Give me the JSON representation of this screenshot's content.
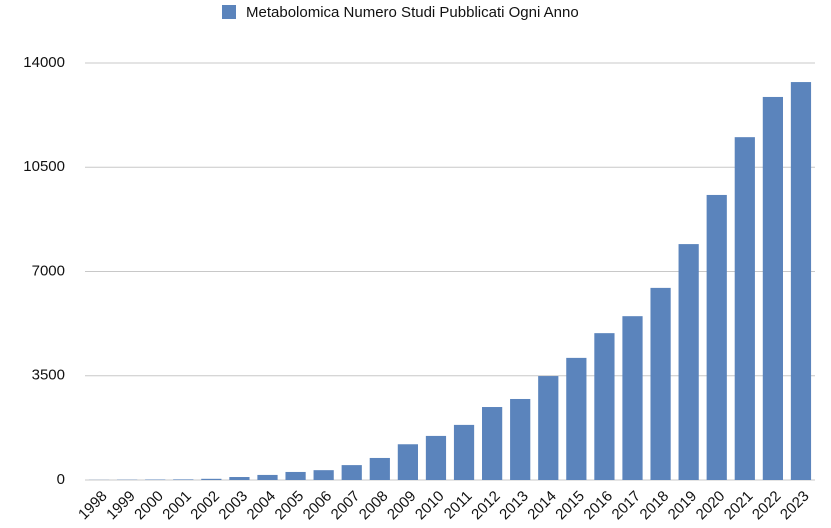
{
  "chart_data": {
    "type": "bar",
    "series": [
      {
        "name": "Metabolomica Numero Studi Pubblicati Ogni Anno",
        "color": "#5b84bc",
        "values": [
          5,
          10,
          15,
          20,
          40,
          100,
          170,
          270,
          330,
          500,
          740,
          1200,
          1480,
          1850,
          2450,
          2720,
          3490,
          4100,
          4930,
          5500,
          6450,
          7920,
          9570,
          11510,
          12860,
          13360
        ]
      }
    ],
    "categories": [
      "1998",
      "1999",
      "2000",
      "2001",
      "2002",
      "2003",
      "2004",
      "2005",
      "2006",
      "2007",
      "2008",
      "2009",
      "2010",
      "2011",
      "2012",
      "2013",
      "2014",
      "2015",
      "2016",
      "2017",
      "2018",
      "2019",
      "2020",
      "2021",
      "2022",
      "2023"
    ],
    "ylim": [
      0,
      14000
    ],
    "yticks": [
      0,
      3500,
      7000,
      10500,
      14000
    ],
    "grid": true,
    "legend": "top"
  }
}
